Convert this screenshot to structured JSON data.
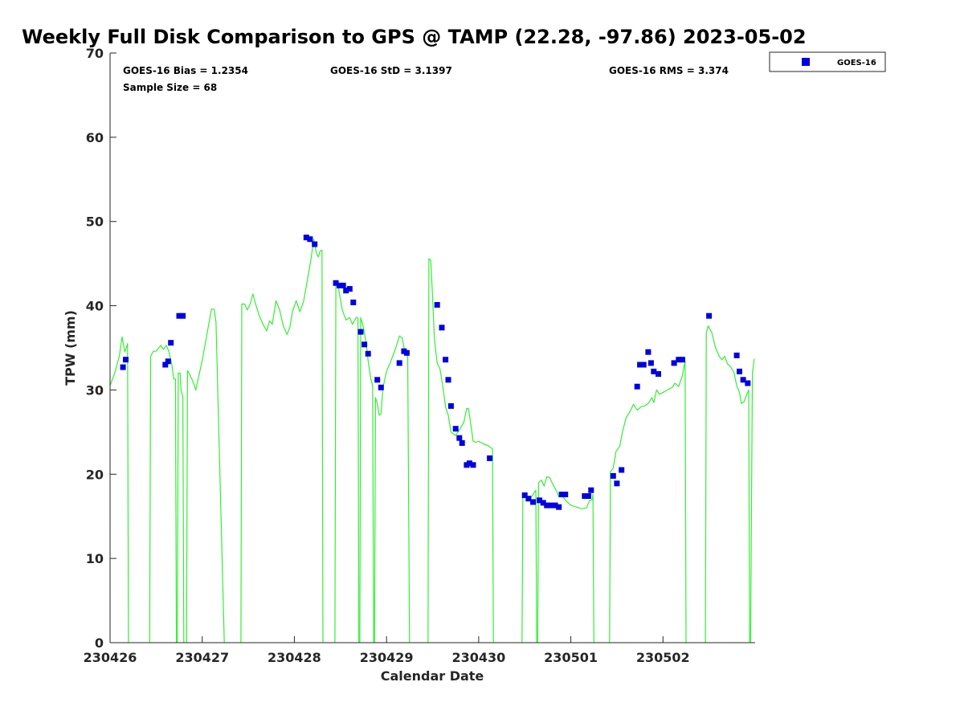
{
  "chart_data": {
    "type": "scatter",
    "title": "Weekly Full Disk Comparison to GPS @ TAMP (22.28, -97.86) 2023-05-02",
    "xlabel": "Calendar Date",
    "ylabel": "TPW (mm)",
    "x_unit": "days (tick = 00 UTC of each date)",
    "xlim": [
      0,
      7
    ],
    "ylim": [
      0,
      70
    ],
    "x_tick_labels": [
      "230426",
      "230427",
      "230428",
      "230429",
      "230430",
      "230501",
      "230502"
    ],
    "x_ticks": [
      0,
      1,
      2,
      3,
      4,
      5,
      6
    ],
    "y_ticks": [
      0,
      10,
      20,
      30,
      40,
      50,
      60,
      70
    ],
    "stats": {
      "bias": "GOES-16 Bias = 1.2354",
      "std": "GOES-16 StD = 3.1397",
      "rms": "GOES-16 RMS = 3.374",
      "sample": "Sample Size = 68"
    },
    "legend": {
      "position": "top-right, outside",
      "entries": [
        "GOES-16"
      ]
    },
    "colors": {
      "goes16": "#0000e0",
      "gps": "#33ee33",
      "axis": "#262626"
    },
    "series": [
      {
        "name": "GOES-16",
        "marker": "square",
        "points": [
          [
            0.14,
            32.7
          ],
          [
            0.17,
            33.6
          ],
          [
            0.6,
            33.0
          ],
          [
            0.63,
            33.4
          ],
          [
            0.66,
            35.6
          ],
          [
            0.75,
            38.8
          ],
          [
            0.79,
            38.8
          ],
          [
            2.13,
            48.1
          ],
          [
            2.17,
            47.9
          ],
          [
            2.22,
            47.3
          ],
          [
            2.45,
            42.7
          ],
          [
            2.49,
            42.4
          ],
          [
            2.53,
            42.4
          ],
          [
            2.56,
            41.8
          ],
          [
            2.6,
            42.0
          ],
          [
            2.64,
            40.4
          ],
          [
            2.72,
            36.9
          ],
          [
            2.76,
            35.4
          ],
          [
            2.8,
            34.3
          ],
          [
            2.9,
            31.2
          ],
          [
            2.94,
            30.3
          ],
          [
            3.14,
            33.2
          ],
          [
            3.19,
            34.6
          ],
          [
            3.22,
            34.4
          ],
          [
            3.55,
            40.1
          ],
          [
            3.6,
            37.4
          ],
          [
            3.64,
            33.6
          ],
          [
            3.67,
            31.2
          ],
          [
            3.7,
            28.1
          ],
          [
            3.75,
            25.4
          ],
          [
            3.79,
            24.3
          ],
          [
            3.82,
            23.7
          ],
          [
            3.87,
            21.1
          ],
          [
            3.9,
            21.3
          ],
          [
            3.94,
            21.1
          ],
          [
            4.12,
            21.9
          ],
          [
            4.5,
            17.5
          ],
          [
            4.54,
            17.1
          ],
          [
            4.59,
            16.7
          ],
          [
            4.66,
            16.9
          ],
          [
            4.7,
            16.6
          ],
          [
            4.74,
            16.3
          ],
          [
            4.78,
            16.3
          ],
          [
            4.83,
            16.3
          ],
          [
            4.87,
            16.1
          ],
          [
            4.9,
            17.6
          ],
          [
            4.94,
            17.6
          ],
          [
            5.15,
            17.4
          ],
          [
            5.19,
            17.4
          ],
          [
            5.22,
            18.1
          ],
          [
            5.46,
            19.8
          ],
          [
            5.5,
            18.9
          ],
          [
            5.55,
            20.5
          ],
          [
            5.72,
            30.4
          ],
          [
            5.75,
            33.0
          ],
          [
            5.79,
            33.0
          ],
          [
            5.84,
            34.5
          ],
          [
            5.87,
            33.2
          ],
          [
            5.9,
            32.2
          ],
          [
            5.95,
            31.9
          ],
          [
            6.12,
            33.2
          ],
          [
            6.17,
            33.6
          ],
          [
            6.21,
            33.6
          ],
          [
            6.5,
            38.8
          ],
          [
            6.8,
            34.1
          ],
          [
            6.83,
            32.2
          ],
          [
            6.87,
            31.2
          ],
          [
            6.92,
            30.8
          ]
        ]
      },
      {
        "name": "",
        "line": true,
        "segments": [
          [
            [
              0.0,
              30.5
            ],
            [
              0.05,
              32.0
            ],
            [
              0.1,
              34.0
            ],
            [
              0.13,
              36.3
            ],
            [
              0.16,
              34.5
            ],
            [
              0.19,
              35.5
            ],
            [
              0.2,
              0
            ]
          ],
          [
            [
              0.43,
              0
            ],
            [
              0.44,
              34.0
            ],
            [
              0.47,
              34.6
            ],
            [
              0.5,
              34.6
            ],
            [
              0.55,
              35.3
            ],
            [
              0.58,
              34.8
            ],
            [
              0.61,
              35.3
            ],
            [
              0.64,
              34.5
            ],
            [
              0.67,
              33.0
            ],
            [
              0.69,
              31.3
            ],
            [
              0.71,
              31.3
            ],
            [
              0.72,
              0
            ]
          ],
          [
            [
              0.73,
              0
            ],
            [
              0.74,
              32.0
            ],
            [
              0.76,
              32.0
            ],
            [
              0.77,
              30.0
            ],
            [
              0.79,
              29.2
            ],
            [
              0.8,
              0
            ]
          ],
          [
            [
              0.83,
              0
            ],
            [
              0.84,
              32.3
            ],
            [
              0.87,
              31.7
            ],
            [
              0.9,
              31.0
            ],
            [
              0.93,
              30.0
            ],
            [
              1.0,
              33.5
            ],
            [
              1.05,
              36.5
            ],
            [
              1.1,
              39.6
            ],
            [
              1.13,
              39.6
            ],
            [
              1.15,
              38.0
            ],
            [
              1.18,
              25.0
            ],
            [
              1.24,
              0
            ]
          ],
          [
            [
              1.42,
              0
            ],
            [
              1.43,
              40.2
            ],
            [
              1.46,
              40.2
            ],
            [
              1.49,
              39.5
            ],
            [
              1.52,
              40.2
            ],
            [
              1.55,
              41.4
            ],
            [
              1.58,
              40.2
            ],
            [
              1.62,
              38.8
            ],
            [
              1.66,
              37.8
            ],
            [
              1.7,
              37.0
            ],
            [
              1.73,
              38.2
            ],
            [
              1.76,
              37.8
            ],
            [
              1.8,
              40.6
            ],
            [
              1.84,
              39.5
            ],
            [
              1.88,
              37.6
            ],
            [
              1.92,
              36.6
            ],
            [
              1.95,
              37.4
            ],
            [
              1.98,
              39.3
            ],
            [
              2.02,
              40.6
            ],
            [
              2.06,
              39.3
            ],
            [
              2.1,
              40.5
            ],
            [
              2.14,
              43.0
            ],
            [
              2.18,
              45.5
            ],
            [
              2.21,
              47.9
            ],
            [
              2.24,
              46.2
            ],
            [
              2.26,
              45.8
            ],
            [
              2.28,
              46.5
            ],
            [
              2.3,
              46.6
            ],
            [
              2.31,
              0
            ]
          ],
          [
            [
              2.44,
              0
            ],
            [
              2.45,
              42.8
            ],
            [
              2.48,
              42.0
            ],
            [
              2.52,
              39.5
            ],
            [
              2.56,
              38.3
            ],
            [
              2.6,
              38.6
            ],
            [
              2.63,
              37.8
            ],
            [
              2.67,
              38.6
            ],
            [
              2.69,
              38.6
            ],
            [
              2.7,
              0
            ]
          ],
          [
            [
              2.71,
              0
            ],
            [
              2.72,
              38.6
            ],
            [
              2.75,
              37.4
            ],
            [
              2.78,
              35.5
            ],
            [
              2.8,
              33.5
            ],
            [
              2.83,
              31.3
            ],
            [
              2.85,
              30.5
            ],
            [
              2.86,
              0
            ]
          ],
          [
            [
              2.87,
              0
            ],
            [
              2.88,
              29.1
            ],
            [
              2.9,
              28.4
            ],
            [
              2.92,
              27.0
            ],
            [
              2.94,
              27.2
            ],
            [
              2.96,
              30.2
            ],
            [
              3.0,
              32.2
            ],
            [
              3.05,
              33.5
            ],
            [
              3.1,
              35.0
            ],
            [
              3.14,
              36.4
            ],
            [
              3.17,
              36.2
            ],
            [
              3.2,
              34.4
            ],
            [
              3.23,
              34.0
            ],
            [
              3.25,
              0
            ]
          ],
          [
            [
              3.45,
              0
            ],
            [
              3.46,
              45.6
            ],
            [
              3.48,
              45.4
            ],
            [
              3.5,
              41.0
            ],
            [
              3.52,
              36.0
            ],
            [
              3.55,
              33.2
            ],
            [
              3.58,
              32.5
            ],
            [
              3.61,
              30.5
            ],
            [
              3.64,
              28.0
            ],
            [
              3.67,
              27.0
            ],
            [
              3.7,
              25.0
            ],
            [
              3.75,
              24.6
            ],
            [
              3.8,
              25.4
            ],
            [
              3.84,
              26.2
            ],
            [
              3.87,
              27.8
            ],
            [
              3.89,
              27.8
            ],
            [
              3.91,
              26.3
            ],
            [
              3.94,
              23.9
            ],
            [
              3.97,
              23.8
            ],
            [
              4.0,
              23.9
            ],
            [
              4.05,
              23.6
            ],
            [
              4.1,
              23.4
            ],
            [
              4.15,
              23.0
            ],
            [
              4.16,
              0
            ]
          ],
          [
            [
              4.47,
              0
            ],
            [
              4.48,
              17.8
            ],
            [
              4.52,
              17.3
            ],
            [
              4.56,
              17.1
            ],
            [
              4.6,
              17.8
            ],
            [
              4.62,
              18.1
            ],
            [
              4.63,
              0
            ]
          ],
          [
            [
              4.64,
              0
            ],
            [
              4.65,
              19.0
            ],
            [
              4.68,
              19.3
            ],
            [
              4.71,
              18.6
            ],
            [
              4.74,
              19.7
            ],
            [
              4.77,
              19.6
            ],
            [
              4.8,
              18.9
            ],
            [
              4.84,
              18.1
            ],
            [
              4.87,
              17.3
            ],
            [
              4.9,
              17.5
            ],
            [
              4.95,
              16.8
            ],
            [
              5.0,
              16.3
            ],
            [
              5.06,
              16.1
            ],
            [
              5.12,
              15.9
            ],
            [
              5.17,
              16.0
            ],
            [
              5.2,
              16.8
            ],
            [
              5.23,
              17.0
            ],
            [
              5.24,
              17.6
            ],
            [
              5.25,
              0
            ]
          ],
          [
            [
              5.42,
              0
            ],
            [
              5.43,
              20.3
            ],
            [
              5.46,
              20.7
            ],
            [
              5.49,
              22.7
            ],
            [
              5.53,
              23.3
            ],
            [
              5.56,
              25.0
            ],
            [
              5.6,
              26.7
            ],
            [
              5.64,
              27.4
            ],
            [
              5.68,
              28.3
            ],
            [
              5.72,
              27.6
            ],
            [
              5.76,
              28.0
            ],
            [
              5.8,
              28.1
            ],
            [
              5.84,
              28.4
            ],
            [
              5.88,
              29.1
            ],
            [
              5.9,
              28.5
            ],
            [
              5.93,
              30.0
            ],
            [
              5.96,
              29.5
            ],
            [
              6.0,
              29.7
            ],
            [
              6.05,
              30.0
            ],
            [
              6.1,
              30.3
            ],
            [
              6.13,
              30.8
            ],
            [
              6.17,
              30.4
            ],
            [
              6.21,
              31.7
            ],
            [
              6.24,
              33.5
            ],
            [
              6.25,
              0
            ]
          ],
          [
            [
              6.46,
              0
            ],
            [
              6.47,
              36.8
            ],
            [
              6.49,
              37.6
            ],
            [
              6.53,
              36.8
            ],
            [
              6.57,
              35.0
            ],
            [
              6.61,
              34.0
            ],
            [
              6.64,
              33.6
            ],
            [
              6.67,
              34.0
            ],
            [
              6.7,
              33.1
            ],
            [
              6.73,
              32.8
            ],
            [
              6.77,
              32.1
            ],
            [
              6.8,
              30.5
            ],
            [
              6.83,
              29.7
            ],
            [
              6.85,
              28.4
            ],
            [
              6.88,
              28.6
            ],
            [
              6.91,
              29.5
            ],
            [
              6.93,
              30.0
            ],
            [
              6.94,
              0
            ]
          ],
          [
            [
              6.95,
              0
            ],
            [
              6.97,
              32.0
            ],
            [
              6.99,
              33.7
            ]
          ]
        ]
      }
    ]
  }
}
